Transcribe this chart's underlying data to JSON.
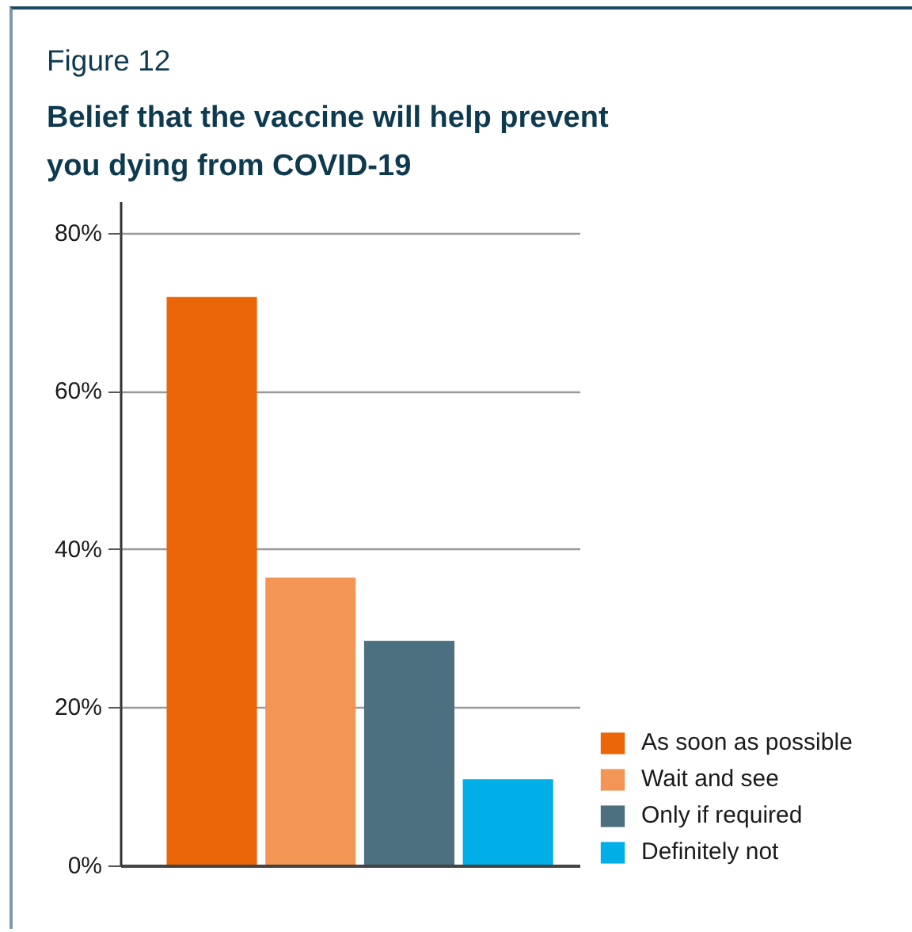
{
  "chart_data": {
    "type": "bar",
    "title": "Figure 12",
    "subtitle": "Belief that the vaccine will help prevent you dying from COVID-19",
    "categories": [
      null
    ],
    "series": [
      {
        "name": "As soon as possible",
        "color": "#eb6608",
        "values": [
          72
        ]
      },
      {
        "name": "Wait and see",
        "color": "#f29555",
        "values": [
          36.5
        ]
      },
      {
        "name": "Only if required",
        "color": "#4d7080",
        "values": [
          28.5
        ]
      },
      {
        "name": "Definitely not",
        "color": "#00aee8",
        "values": [
          11
        ]
      }
    ],
    "ylim": [
      0,
      84
    ],
    "yticks": [
      {
        "value": 0,
        "label": "0%"
      },
      {
        "value": 20,
        "label": "20%"
      },
      {
        "value": 40,
        "label": "40%"
      },
      {
        "value": 60,
        "label": "60%"
      },
      {
        "value": 80,
        "label": "80%"
      }
    ],
    "grid": "y",
    "legend": "bottom right"
  }
}
